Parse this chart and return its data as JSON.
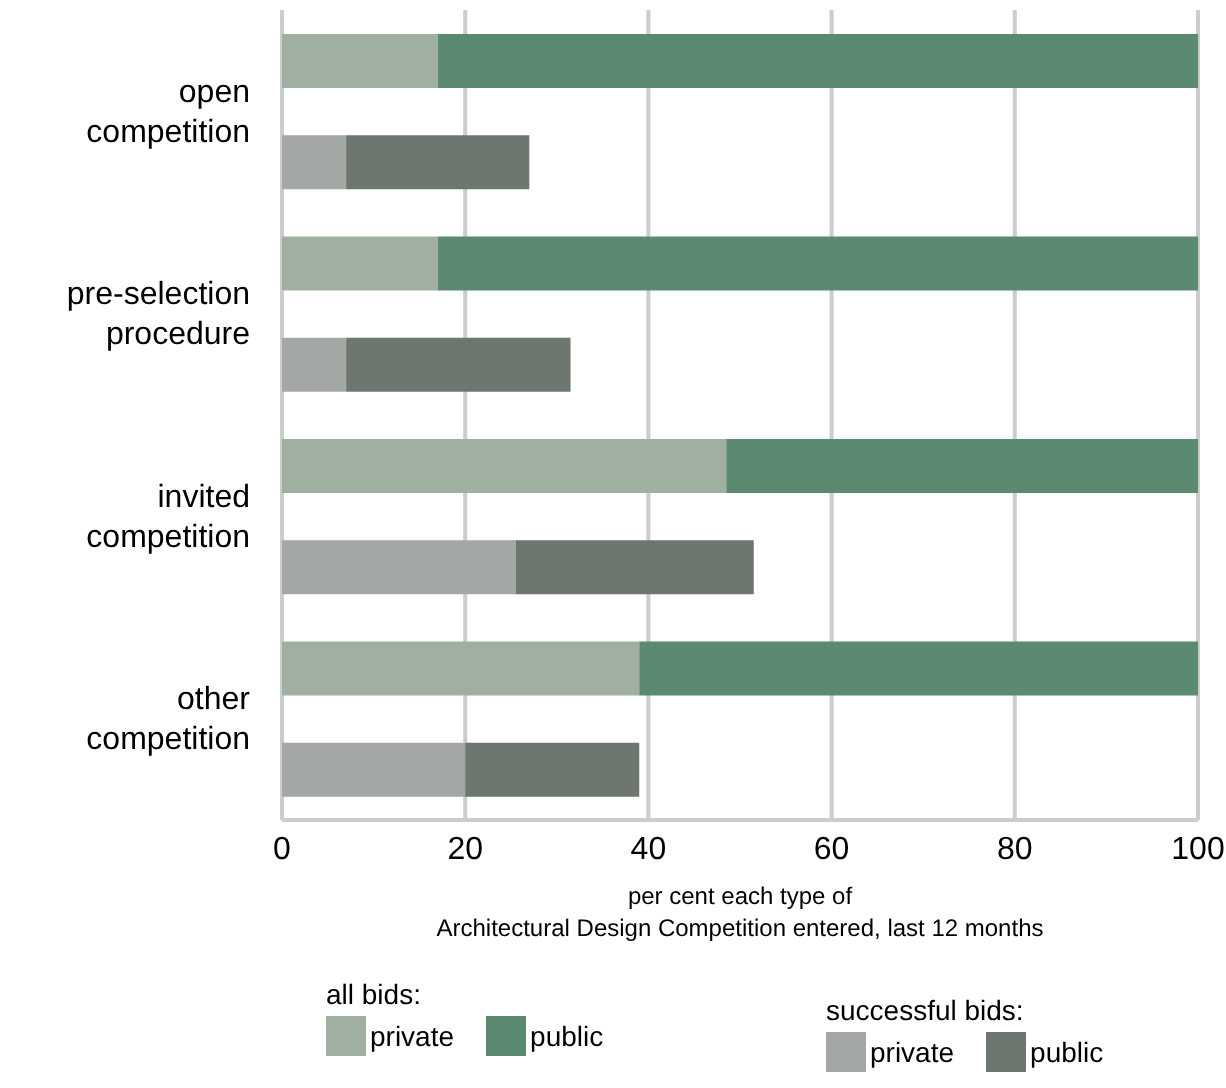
{
  "chart_data": {
    "type": "bar",
    "orientation": "horizontal",
    "stacked": true,
    "categories": [
      "open competition",
      null,
      "pre-selection procedure",
      null,
      "invited competition",
      null,
      "other competition",
      null
    ],
    "series": [
      {
        "name": "private",
        "color": "#9fb0a0",
        "values": [
          17,
          null,
          17,
          null,
          48.5,
          null,
          39,
          null
        ]
      },
      {
        "name": "public",
        "color": "#5b8a70",
        "values": [
          83,
          null,
          83,
          null,
          51.5,
          null,
          61,
          null
        ]
      },
      {
        "name": "private",
        "color": "#a3a8a4",
        "values": [
          null,
          7,
          null,
          7,
          null,
          25.5,
          null,
          20
        ]
      },
      {
        "name": "public",
        "color": "#6d7770",
        "values": [
          null,
          20,
          null,
          24.5,
          null,
          26,
          null,
          19
        ]
      }
    ],
    "xlim": [
      0,
      100
    ],
    "xticks": [
      0,
      20,
      40,
      60,
      80,
      100
    ],
    "grid": "x",
    "legend": "bottom",
    "xlabel": "per cent each type of\nArchitectural Design Competition entered, last 12 months",
    "annotations": [
      "all bids:",
      "successful bids:"
    ]
  }
}
